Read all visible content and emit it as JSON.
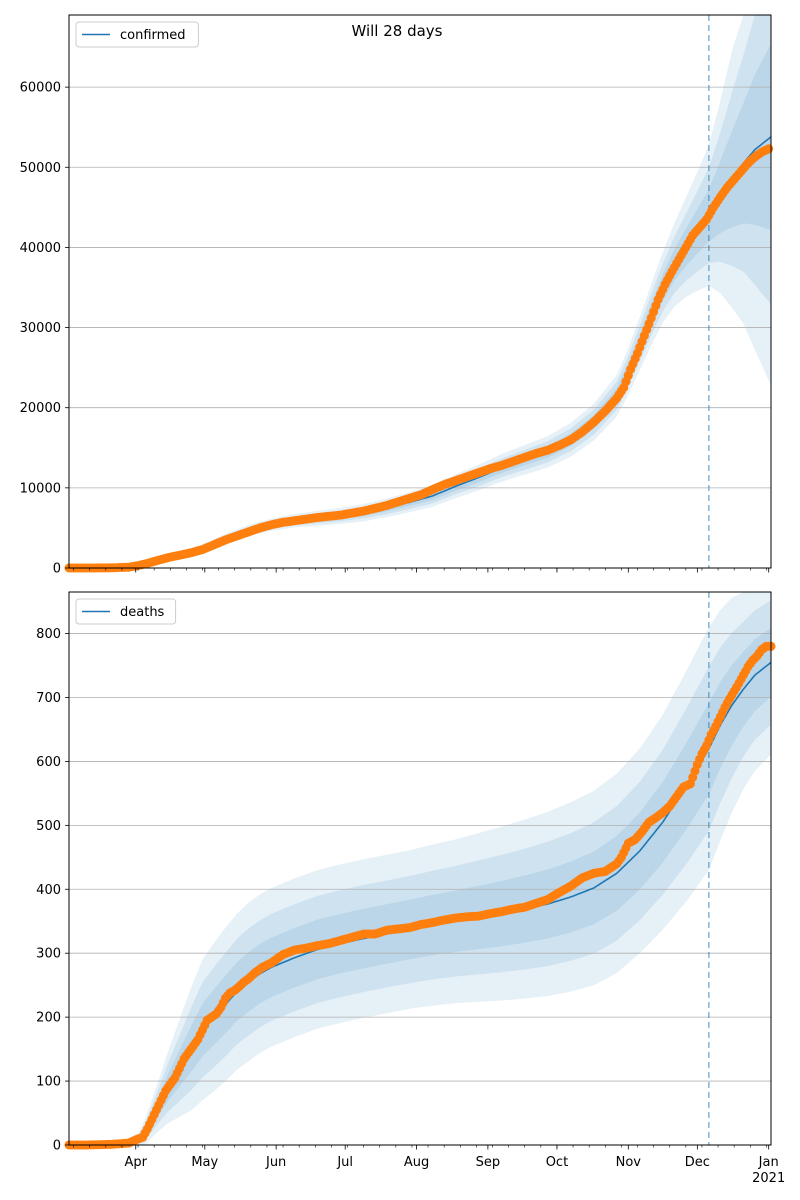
{
  "figure": {
    "title": "Will 28 days",
    "colors": {
      "model": "#1f77b4",
      "observed": "#ff7f0e",
      "band": "#1f77b4",
      "grid": "#b0b0b0",
      "forecast_line": "#1f77b4"
    }
  },
  "x_axis": {
    "ticks": [
      {
        "label": "Apr",
        "day": 91
      },
      {
        "label": "May",
        "day": 121
      },
      {
        "label": "Jun",
        "day": 152
      },
      {
        "label": "Jul",
        "day": 182
      },
      {
        "label": "Aug",
        "day": 213
      },
      {
        "label": "Sep",
        "day": 244
      },
      {
        "label": "Oct",
        "day": 274
      },
      {
        "label": "Nov",
        "day": 305
      },
      {
        "label": "Dec",
        "day": 335
      },
      {
        "label": "Jan",
        "day": 366
      }
    ],
    "year_label": "2021"
  },
  "chart_data": [
    {
      "type": "line",
      "title": "",
      "legend": [
        "confirmed"
      ],
      "legend_position": "top-left",
      "grid": "horizontal",
      "x_unit": "day of 2020",
      "xlim": [
        62,
        367
      ],
      "ylim": [
        0,
        69000
      ],
      "yticks": [
        0,
        10000,
        20000,
        30000,
        40000,
        50000,
        60000
      ],
      "forecast_start": 340,
      "series": [
        {
          "name": "confirmed",
          "kind": "model",
          "x": [
            62,
            85,
            92,
            100,
            110,
            120,
            130,
            140,
            150,
            160,
            170,
            180,
            190,
            200,
            210,
            220,
            230,
            240,
            250,
            260,
            270,
            280,
            290,
            300,
            305,
            310,
            315,
            320,
            325,
            330,
            335,
            340,
            345,
            350,
            355,
            360,
            367
          ],
          "y": [
            0,
            100,
            300,
            900,
            1600,
            2500,
            3700,
            4700,
            5400,
            5900,
            6200,
            6500,
            6900,
            7500,
            8200,
            9000,
            10200,
            11300,
            12500,
            13500,
            14500,
            16000,
            18200,
            21500,
            24500,
            28000,
            31600,
            35000,
            37800,
            40000,
            42000,
            44000,
            46300,
            48500,
            50500,
            52200,
            53800
          ],
          "band_half_width": [
            0,
            40,
            60,
            120,
            180,
            230,
            280,
            330,
            380,
            420,
            460,
            500,
            540,
            580,
            620,
            680,
            740,
            800,
            860,
            920,
            980,
            1050,
            1150,
            1300,
            1450,
            1650,
            1900,
            2200,
            2600,
            3100,
            3700,
            4400,
            6000,
            8000,
            10000,
            12500,
            15500
          ]
        },
        {
          "name": "",
          "kind": "observed",
          "x": [
            62,
            70,
            80,
            88,
            92,
            95,
            100,
            105,
            110,
            115,
            120,
            125,
            130,
            135,
            140,
            145,
            150,
            155,
            160,
            165,
            170,
            175,
            180,
            185,
            190,
            195,
            200,
            205,
            210,
            215,
            220,
            225,
            230,
            235,
            240,
            245,
            250,
            255,
            260,
            265,
            270,
            275,
            280,
            285,
            290,
            295,
            300,
            303,
            306,
            309,
            312,
            315,
            318,
            321,
            324,
            327,
            330,
            333,
            336,
            339,
            342,
            345,
            348,
            351,
            354,
            357,
            360,
            363,
            366
          ],
          "y": [
            0,
            0,
            20,
            100,
            300,
            500,
            900,
            1300,
            1600,
            1900,
            2300,
            2900,
            3500,
            4000,
            4500,
            5000,
            5400,
            5700,
            5900,
            6100,
            6300,
            6450,
            6600,
            6850,
            7100,
            7450,
            7800,
            8250,
            8700,
            9150,
            9800,
            10400,
            10900,
            11400,
            11900,
            12400,
            12800,
            13300,
            13800,
            14300,
            14700,
            15300,
            16000,
            17000,
            18200,
            19600,
            21200,
            22500,
            24800,
            26800,
            29000,
            31200,
            33500,
            35400,
            37000,
            38500,
            40000,
            41500,
            42500,
            43500,
            45000,
            46300,
            47500,
            48500,
            49500,
            50500,
            51300,
            51900,
            52300
          ]
        }
      ]
    },
    {
      "type": "line",
      "title": "",
      "legend": [
        "deaths"
      ],
      "legend_position": "top-left",
      "grid": "horizontal",
      "x_unit": "day of 2020",
      "xlim": [
        62,
        367
      ],
      "ylim": [
        0,
        865
      ],
      "yticks": [
        0,
        100,
        200,
        300,
        400,
        500,
        600,
        700,
        800
      ],
      "forecast_start": 340,
      "series": [
        {
          "name": "deaths",
          "kind": "model",
          "x": [
            62,
            85,
            92,
            95,
            100,
            105,
            110,
            115,
            120,
            125,
            130,
            135,
            140,
            145,
            150,
            160,
            170,
            180,
            190,
            200,
            210,
            220,
            230,
            240,
            250,
            260,
            270,
            280,
            290,
            300,
            310,
            320,
            330,
            340,
            345,
            350,
            355,
            360,
            367
          ],
          "y": [
            0,
            2,
            8,
            20,
            55,
            90,
            120,
            150,
            180,
            200,
            220,
            240,
            255,
            268,
            278,
            293,
            306,
            315,
            323,
            330,
            337,
            344,
            350,
            356,
            362,
            369,
            377,
            388,
            402,
            425,
            460,
            505,
            560,
            620,
            657,
            688,
            713,
            735,
            755
          ],
          "band_half_width": [
            0,
            2,
            5,
            10,
            18,
            28,
            38,
            48,
            55,
            58,
            60,
            61,
            62,
            62,
            62,
            62,
            62,
            62,
            62,
            62,
            62,
            63,
            64,
            66,
            68,
            70,
            72,
            74,
            76,
            78,
            80,
            84,
            90,
            95,
            90,
            84,
            78,
            75,
            72
          ]
        },
        {
          "name": "",
          "kind": "observed",
          "x": [
            62,
            70,
            80,
            88,
            91,
            94,
            96,
            98,
            100,
            102,
            104,
            106,
            108,
            110,
            112,
            114,
            116,
            118,
            120,
            122,
            124,
            126,
            128,
            130,
            132,
            134,
            136,
            138,
            140,
            143,
            146,
            150,
            155,
            160,
            165,
            170,
            175,
            180,
            185,
            190,
            195,
            200,
            205,
            210,
            215,
            220,
            225,
            230,
            235,
            240,
            245,
            250,
            255,
            260,
            265,
            270,
            275,
            280,
            285,
            290,
            295,
            300,
            302,
            305,
            308,
            311,
            314,
            317,
            320,
            323,
            326,
            329,
            332,
            335,
            337,
            339,
            341,
            343,
            345,
            347,
            349,
            351,
            353,
            355,
            357,
            359,
            361,
            363,
            365,
            367
          ],
          "y": [
            0,
            0,
            1,
            3,
            8,
            12,
            25,
            40,
            55,
            70,
            85,
            95,
            105,
            120,
            135,
            145,
            155,
            165,
            180,
            195,
            200,
            205,
            215,
            230,
            238,
            242,
            248,
            255,
            260,
            270,
            278,
            285,
            298,
            305,
            308,
            312,
            315,
            320,
            325,
            330,
            330,
            336,
            338,
            340,
            345,
            348,
            352,
            355,
            357,
            358,
            362,
            365,
            369,
            372,
            378,
            384,
            395,
            405,
            418,
            425,
            428,
            440,
            450,
            472,
            478,
            490,
            505,
            512,
            520,
            530,
            545,
            560,
            565,
            595,
            612,
            625,
            642,
            655,
            670,
            685,
            698,
            710,
            722,
            735,
            748,
            758,
            765,
            775,
            780,
            780
          ]
        }
      ]
    }
  ]
}
